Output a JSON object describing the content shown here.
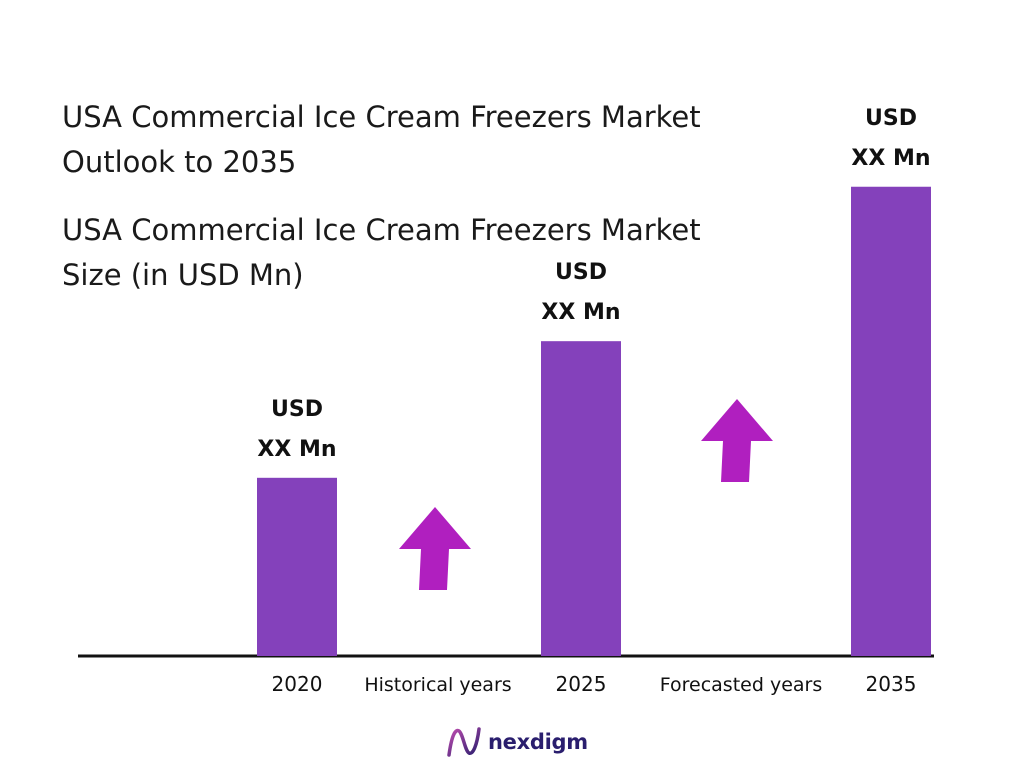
{
  "titles": {
    "line1a": "USA Commercial Ice Cream Freezers Market",
    "line1b": "Outlook to 2035",
    "line2a": "USA Commercial Ice Cream Freezers Market",
    "line2b": "Size (in USD Mn)"
  },
  "chart_data": {
    "type": "bar",
    "categories": [
      "2020",
      "2025",
      "2035"
    ],
    "values": [
      30,
      53,
      79
    ],
    "data_labels": [
      [
        "USD",
        "XX Mn"
      ],
      [
        "USD",
        "XX Mn"
      ],
      [
        "USD",
        "XX Mn"
      ]
    ],
    "period_labels": [
      "Historical years",
      "Forecasted years"
    ],
    "ylim": [
      0,
      100
    ],
    "grid": false,
    "legend": "none",
    "colors": {
      "bar": "#8441BB",
      "arrow": "#B01FBF",
      "axis": "#111111"
    }
  },
  "logo": {
    "text": "nexdigm"
  }
}
